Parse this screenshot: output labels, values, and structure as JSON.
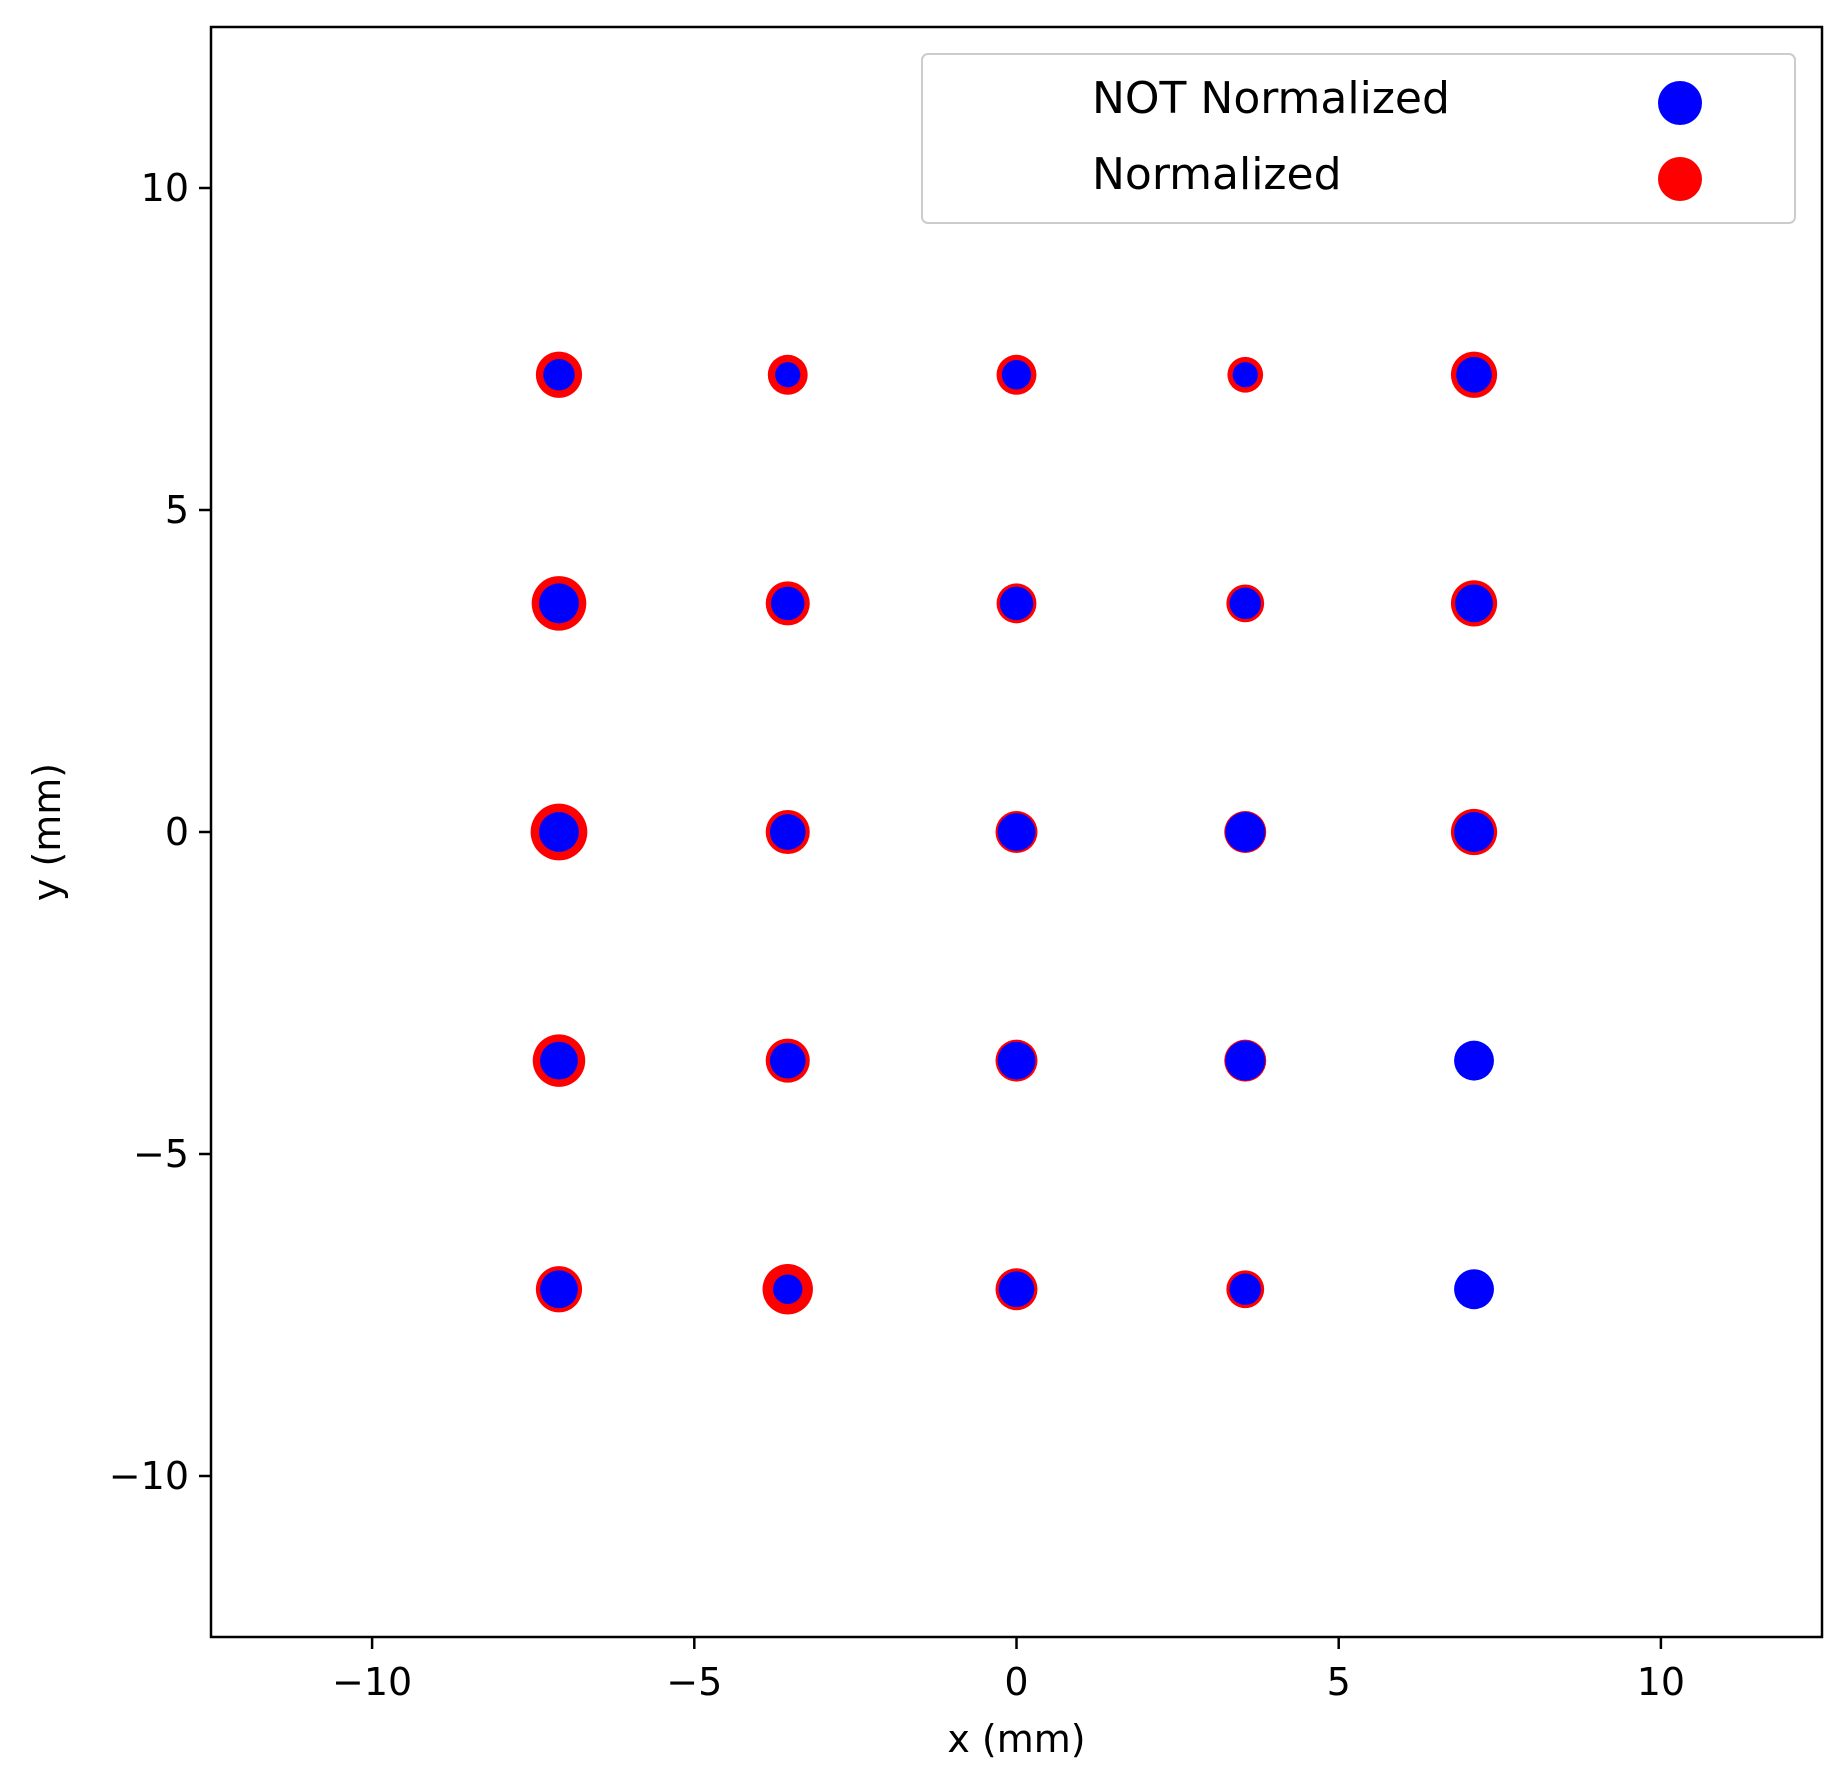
{
  "chart_data": {
    "type": "scatter",
    "title": "",
    "xlabel": "x (mm)",
    "ylabel": "y (mm)",
    "xlim": [
      -12.5,
      12.5
    ],
    "ylim": [
      -12.5,
      12.5
    ],
    "xticks": [
      -10,
      -5,
      0,
      5,
      10
    ],
    "yticks": [
      -10,
      -5,
      0,
      5,
      10
    ],
    "xtick_labels": [
      "−10",
      "−5",
      "0",
      "5",
      "10"
    ],
    "ytick_labels": [
      "−10",
      "−5",
      "0",
      "5",
      "10"
    ],
    "grid": false,
    "legend_position": "top-right",
    "series": [
      {
        "name": "Normalized",
        "color": "#ff0000",
        "points": [
          {
            "x": -7.1,
            "y": 7.1,
            "size": 1.1
          },
          {
            "x": -3.55,
            "y": 7.1,
            "size": 0.95
          },
          {
            "x": 0,
            "y": 7.1,
            "size": 0.95
          },
          {
            "x": 3.55,
            "y": 7.1,
            "size": 0.85
          },
          {
            "x": 7.1,
            "y": 7.1,
            "size": 1.1
          },
          {
            "x": -7.1,
            "y": 3.55,
            "size": 1.3
          },
          {
            "x": -3.55,
            "y": 3.55,
            "size": 1.05
          },
          {
            "x": 0,
            "y": 3.55,
            "size": 0.95
          },
          {
            "x": 3.55,
            "y": 3.55,
            "size": 0.9
          },
          {
            "x": 7.1,
            "y": 3.55,
            "size": 1.1
          },
          {
            "x": -7.1,
            "y": 0,
            "size": 1.35
          },
          {
            "x": -3.55,
            "y": 0,
            "size": 1.05
          },
          {
            "x": 0,
            "y": 0,
            "size": 1.0
          },
          {
            "x": 3.55,
            "y": 0,
            "size": 1.0
          },
          {
            "x": 7.1,
            "y": 0,
            "size": 1.1
          },
          {
            "x": -7.1,
            "y": -3.55,
            "size": 1.25
          },
          {
            "x": -3.55,
            "y": -3.55,
            "size": 1.05
          },
          {
            "x": 0,
            "y": -3.55,
            "size": 1.0
          },
          {
            "x": 3.55,
            "y": -3.55,
            "size": 1.0
          },
          {
            "x": 7.1,
            "y": -3.55,
            "size": 0.9
          },
          {
            "x": -7.1,
            "y": -7.1,
            "size": 1.1
          },
          {
            "x": -3.55,
            "y": -7.1,
            "size": 1.2
          },
          {
            "x": 0,
            "y": -7.1,
            "size": 1.0
          },
          {
            "x": 3.55,
            "y": -7.1,
            "size": 0.9
          },
          {
            "x": 7.1,
            "y": -7.1,
            "size": 0.85
          }
        ]
      },
      {
        "name": "NOT Normalized",
        "color": "#0000ff",
        "points": [
          {
            "x": -7.1,
            "y": 7.1,
            "size": 0.75
          },
          {
            "x": -3.55,
            "y": 7.1,
            "size": 0.6
          },
          {
            "x": 0,
            "y": 7.1,
            "size": 0.7
          },
          {
            "x": 3.55,
            "y": 7.1,
            "size": 0.6
          },
          {
            "x": 7.1,
            "y": 7.1,
            "size": 0.85
          },
          {
            "x": -7.1,
            "y": 3.55,
            "size": 0.95
          },
          {
            "x": -3.55,
            "y": 3.55,
            "size": 0.8
          },
          {
            "x": 0,
            "y": 3.55,
            "size": 0.8
          },
          {
            "x": 3.55,
            "y": 3.55,
            "size": 0.75
          },
          {
            "x": 7.1,
            "y": 3.55,
            "size": 0.9
          },
          {
            "x": -7.1,
            "y": 0,
            "size": 0.95
          },
          {
            "x": -3.55,
            "y": 0,
            "size": 0.85
          },
          {
            "x": 0,
            "y": 0,
            "size": 0.9
          },
          {
            "x": 3.55,
            "y": 0,
            "size": 0.95
          },
          {
            "x": 7.1,
            "y": 0,
            "size": 0.95
          },
          {
            "x": -7.1,
            "y": -3.55,
            "size": 0.9
          },
          {
            "x": -3.55,
            "y": -3.55,
            "size": 0.85
          },
          {
            "x": 0,
            "y": -3.55,
            "size": 0.9
          },
          {
            "x": 3.55,
            "y": -3.55,
            "size": 0.95
          },
          {
            "x": 7.1,
            "y": -3.55,
            "size": 0.95
          },
          {
            "x": -7.1,
            "y": -7.1,
            "size": 0.9
          },
          {
            "x": -3.55,
            "y": -7.1,
            "size": 0.7
          },
          {
            "x": 0,
            "y": -7.1,
            "size": 0.85
          },
          {
            "x": 3.55,
            "y": -7.1,
            "size": 0.75
          },
          {
            "x": 7.1,
            "y": -7.1,
            "size": 0.95
          }
        ]
      }
    ],
    "legend": [
      {
        "label": "NOT Normalized",
        "color": "#0000ff"
      },
      {
        "label": "Normalized",
        "color": "#ff0000"
      }
    ]
  }
}
